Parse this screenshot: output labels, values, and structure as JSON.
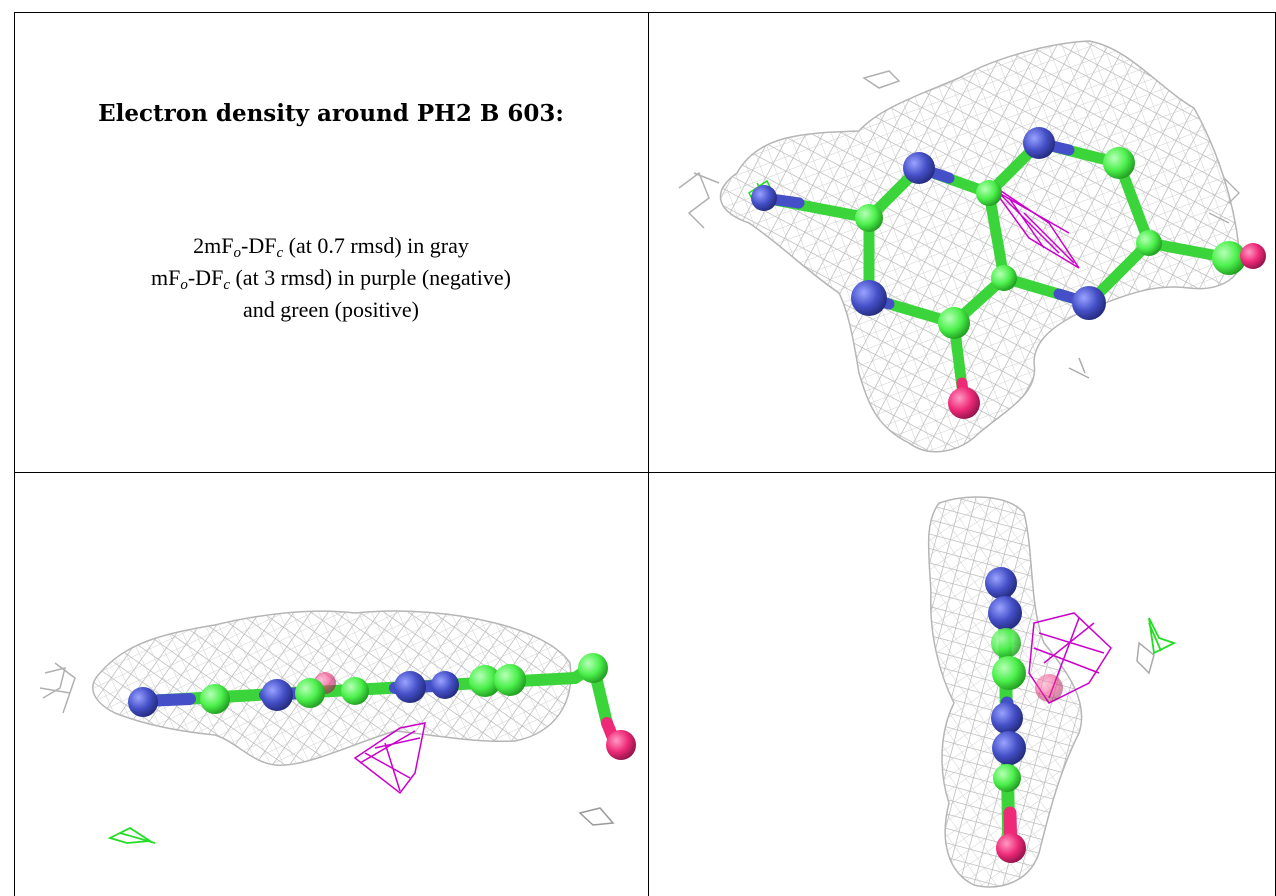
{
  "caption": {
    "title": "Electron density around PH2 B 603:",
    "line1": {
      "a": "2mF",
      "sub1": "o",
      "b": "-DF",
      "sub2": "c",
      "c": " (at 0.7 rmsd) in gray"
    },
    "line2": {
      "a": "mF",
      "sub1": "o",
      "b": "-DF",
      "sub2": "c",
      "c": " (at 3 rmsd) in purple (negative)"
    },
    "line3": "and green (positive)"
  },
  "colors": {
    "mesh_2fofc": "#b3b3b3",
    "mesh_negative": "#cc00cc",
    "mesh_positive": "#22dd22",
    "carbon": "#4cf04c",
    "nitrogen": "#4550c8",
    "oxygen": "#ee2a78",
    "border": "#000000"
  },
  "panels": [
    {
      "name": "view-top-right",
      "view": "face-on"
    },
    {
      "name": "view-bottom-left",
      "view": "edge-on-horizontal"
    },
    {
      "name": "view-bottom-right",
      "view": "edge-on-vertical"
    }
  ]
}
